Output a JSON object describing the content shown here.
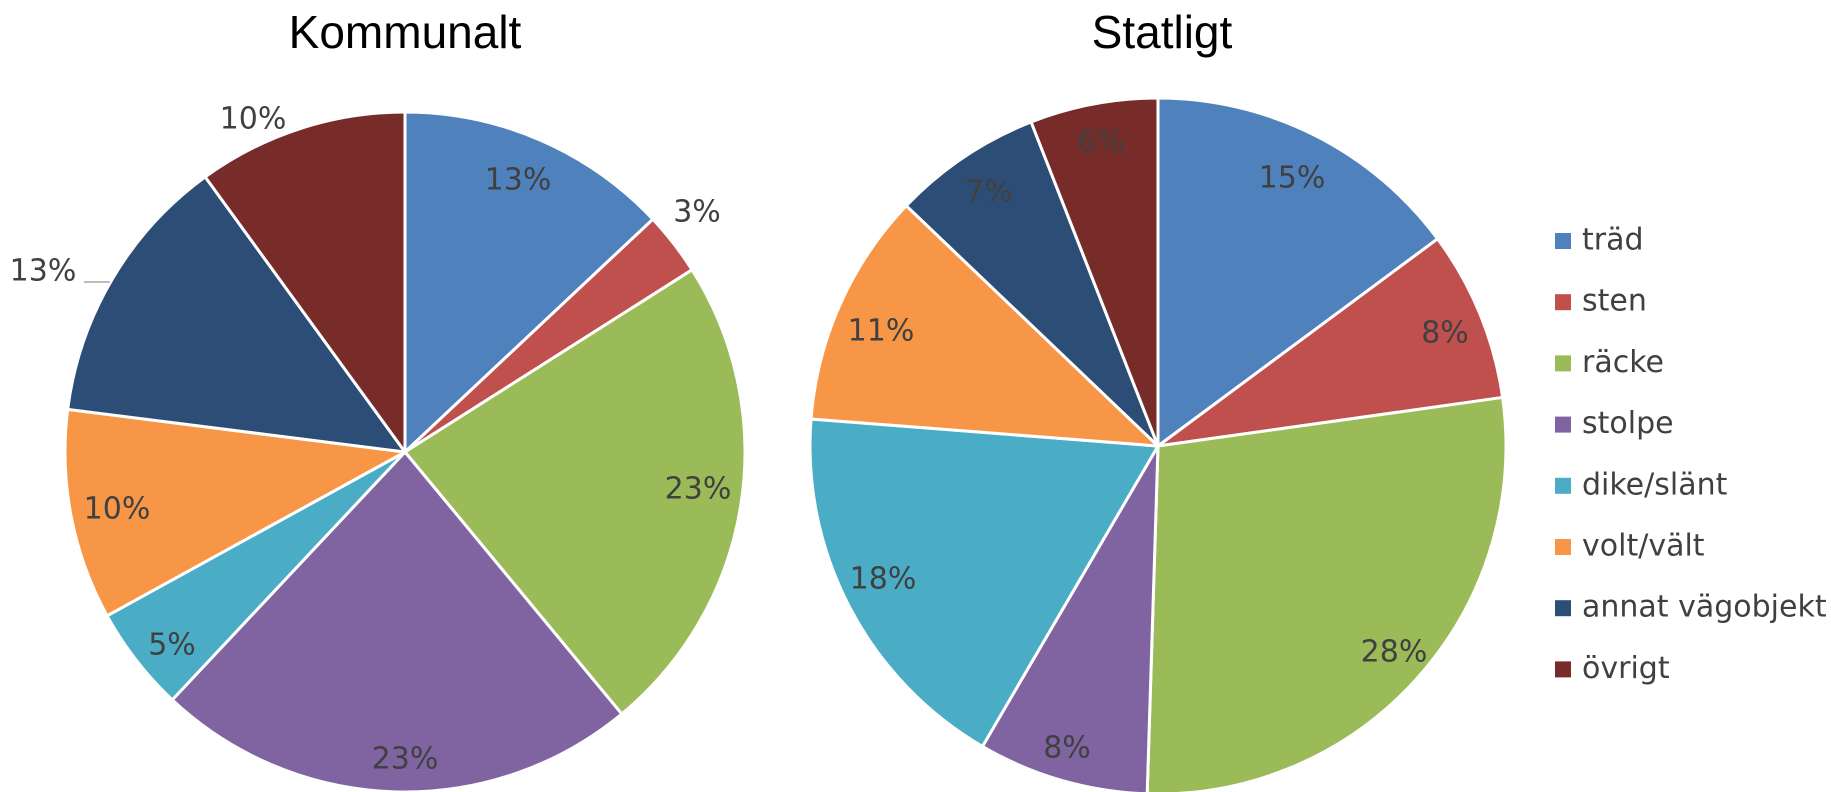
{
  "colors": {
    "träd": "#4F81BD",
    "sten": "#C0504D",
    "räcke": "#9BBB59",
    "stolpe": "#8064A2",
    "dike/slänt": "#4BACC6",
    "volt/vält": "#F79646",
    "annat vägobjekt": "#2C4D75",
    "övrigt": "#772C2A"
  },
  "legend": {
    "placement": "right",
    "entries": [
      "träd",
      "sten",
      "räcke",
      "stolpe",
      "dike/slänt",
      "volt/vält",
      "annat vägobjekt",
      "övrigt"
    ]
  },
  "chart_data": [
    {
      "type": "pie",
      "title": "Kommunalt",
      "categories": [
        "träd",
        "sten",
        "räcke",
        "stolpe",
        "dike/slänt",
        "volt/vält",
        "annat vägobjekt",
        "övrigt"
      ],
      "values": [
        13,
        3,
        23,
        23,
        5,
        10,
        13,
        10
      ],
      "labels": [
        "13%",
        "3%",
        "23%",
        "23%",
        "5%",
        "10%",
        "13%",
        "10%"
      ]
    },
    {
      "type": "pie",
      "title": "Statligt",
      "categories": [
        "träd",
        "sten",
        "räcke",
        "stolpe",
        "dike/slänt",
        "volt/vält",
        "annat vägobjekt",
        "övrigt"
      ],
      "values": [
        15,
        8,
        28,
        8,
        18,
        11,
        7,
        6
      ],
      "labels": [
        "15%",
        "8%",
        "28%",
        "8%",
        "18%",
        "11%",
        "7%",
        "6%"
      ]
    }
  ]
}
